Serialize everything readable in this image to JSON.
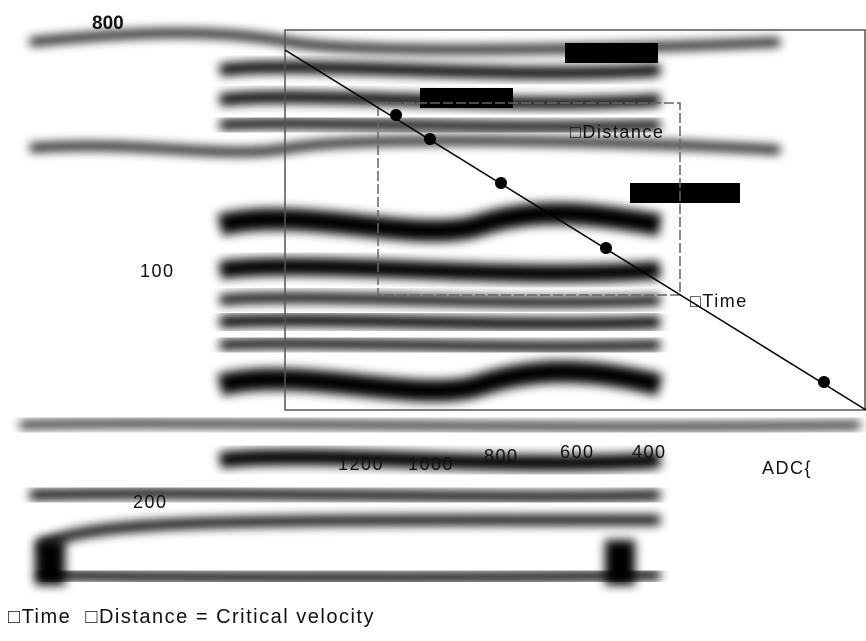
{
  "axis_labels": {
    "left": [
      "800",
      "100",
      "200"
    ],
    "bottom": [
      "1200",
      "1000",
      "800",
      "600",
      "400"
    ]
  },
  "annotations": [
    "□Distance",
    "□Time",
    "ADC{"
  ],
  "caption": "□Time  □Distance = Critical velocity"
}
